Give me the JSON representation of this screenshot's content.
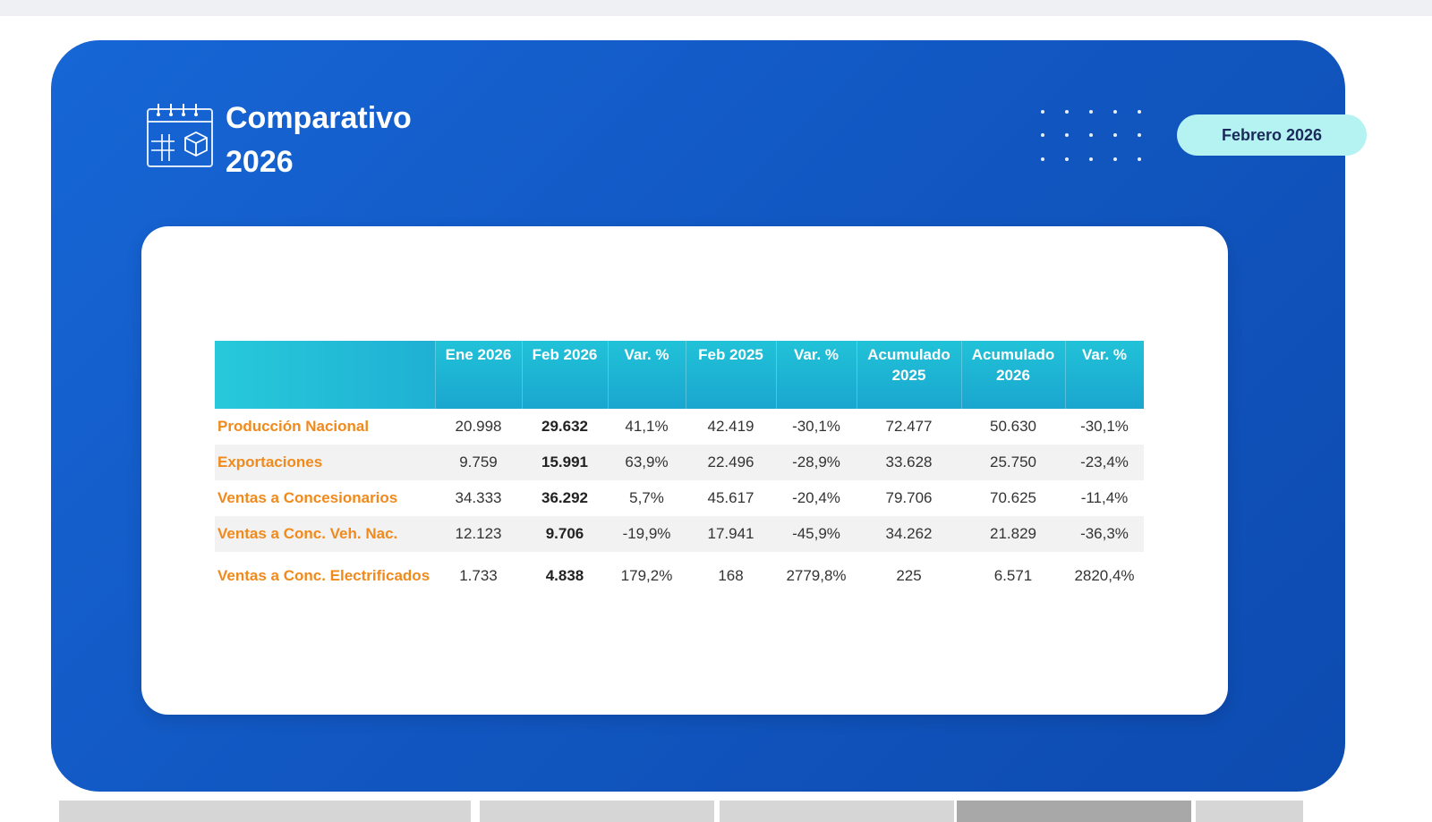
{
  "header": {
    "title_line1": "Comparativo",
    "title_line2": "2026",
    "period_badge": "Febrero 2026",
    "icon": "calendar-box-icon",
    "dot_grid_icon": "dot-grid-icon"
  },
  "colors": {
    "card_blue": "#1461cf",
    "header_teal": "#1fb3d3",
    "badge": "#b5f2f2",
    "row_label": "#f08a1c",
    "positive": "#3aa24a",
    "negative": "#e3262b"
  },
  "table": {
    "columns": [
      "",
      "Ene 2026",
      "Feb 2026",
      "Var. %",
      "Feb 2025",
      "Var. %",
      "Acumulado 2025",
      "Acumulado 2026",
      "Var. %"
    ],
    "rows": [
      {
        "label": "Producción Nacional",
        "ene_2026": "20.998",
        "feb_2026": "29.632",
        "var1": "41,1%",
        "feb_2025": "42.419",
        "var2": "-30,1%",
        "acum_2025": "72.477",
        "acum_2026": "50.630",
        "var3": "-30,1%"
      },
      {
        "label": "Exportaciones",
        "ene_2026": "9.759",
        "feb_2026": "15.991",
        "var1": "63,9%",
        "feb_2025": "22.496",
        "var2": "-28,9%",
        "acum_2025": "33.628",
        "acum_2026": "25.750",
        "var3": "-23,4%"
      },
      {
        "label": "Ventas a Concesionarios",
        "ene_2026": "34.333",
        "feb_2026": "36.292",
        "var1": "5,7%",
        "feb_2025": "45.617",
        "var2": "-20,4%",
        "acum_2025": "79.706",
        "acum_2026": "70.625",
        "var3": "-11,4%"
      },
      {
        "label": "Ventas a Conc. Veh. Nac.",
        "ene_2026": "12.123",
        "feb_2026": "9.706",
        "var1": "-19,9%",
        "feb_2025": "17.941",
        "var2": "-45,9%",
        "acum_2025": "34.262",
        "acum_2026": "21.829",
        "var3": "-36,3%"
      },
      {
        "label": "Ventas a Conc. Electrificados",
        "ene_2026": "1.733",
        "feb_2026": "4.838",
        "var1": "179,2%",
        "feb_2025": "168",
        "var2": "2779,8%",
        "acum_2025": "225",
        "acum_2026": "6.571",
        "var3": "2820,4%"
      }
    ]
  }
}
